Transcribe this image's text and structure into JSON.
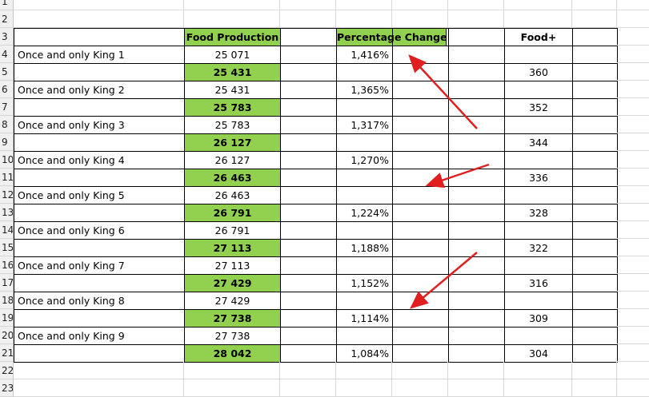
{
  "row_numbers": [
    "1",
    "2",
    "3",
    "4",
    "5",
    "6",
    "7",
    "8",
    "9",
    "10",
    "11",
    "12",
    "13",
    "14",
    "15",
    "16",
    "17",
    "18",
    "19",
    "20",
    "21",
    "22",
    "23"
  ],
  "headers": {
    "food_production": "Food Production",
    "percentage_change": "Percentage Change",
    "food_plus": "Food+"
  },
  "rows": [
    {
      "label": "Once and only King 1",
      "production": "25 071",
      "highlight": false,
      "pct": "1,416%",
      "food_plus": ""
    },
    {
      "label": "",
      "production": "25 431",
      "highlight": true,
      "pct": "",
      "food_plus": "360"
    },
    {
      "label": "Once and only King 2",
      "production": "25 431",
      "highlight": false,
      "pct": "1,365%",
      "food_plus": ""
    },
    {
      "label": "",
      "production": "25 783",
      "highlight": true,
      "pct": "",
      "food_plus": "352"
    },
    {
      "label": "Once and only King 3",
      "production": "25 783",
      "highlight": false,
      "pct": "1,317%",
      "food_plus": ""
    },
    {
      "label": "",
      "production": "26 127",
      "highlight": true,
      "pct": "",
      "food_plus": "344"
    },
    {
      "label": "Once and only King 4",
      "production": "26 127",
      "highlight": false,
      "pct": "1,270%",
      "food_plus": ""
    },
    {
      "label": "",
      "production": "26 463",
      "highlight": true,
      "pct": "",
      "food_plus": "336"
    },
    {
      "label": "Once and only King 5",
      "production": "26 463",
      "highlight": false,
      "pct": "",
      "food_plus": ""
    },
    {
      "label": "",
      "production": "26 791",
      "highlight": true,
      "pct": "1,224%",
      "food_plus": "328"
    },
    {
      "label": "Once and only King 6",
      "production": "26 791",
      "highlight": false,
      "pct": "",
      "food_plus": ""
    },
    {
      "label": "",
      "production": "27 113",
      "highlight": true,
      "pct": "1,188%",
      "food_plus": "322"
    },
    {
      "label": "Once and only King 7",
      "production": "27 113",
      "highlight": false,
      "pct": "",
      "food_plus": ""
    },
    {
      "label": "",
      "production": "27 429",
      "highlight": true,
      "pct": "1,152%",
      "food_plus": "316"
    },
    {
      "label": "Once and only King 8",
      "production": "27 429",
      "highlight": false,
      "pct": "",
      "food_plus": ""
    },
    {
      "label": "",
      "production": "27 738",
      "highlight": true,
      "pct": "1,114%",
      "food_plus": "309"
    },
    {
      "label": "Once and only King 9",
      "production": "27 738",
      "highlight": false,
      "pct": "",
      "food_plus": ""
    },
    {
      "label": "",
      "production": "28 042",
      "highlight": true,
      "pct": "1,084%",
      "food_plus": "304"
    }
  ],
  "colors": {
    "highlight": "#92d050",
    "arrow": "#e02020"
  }
}
